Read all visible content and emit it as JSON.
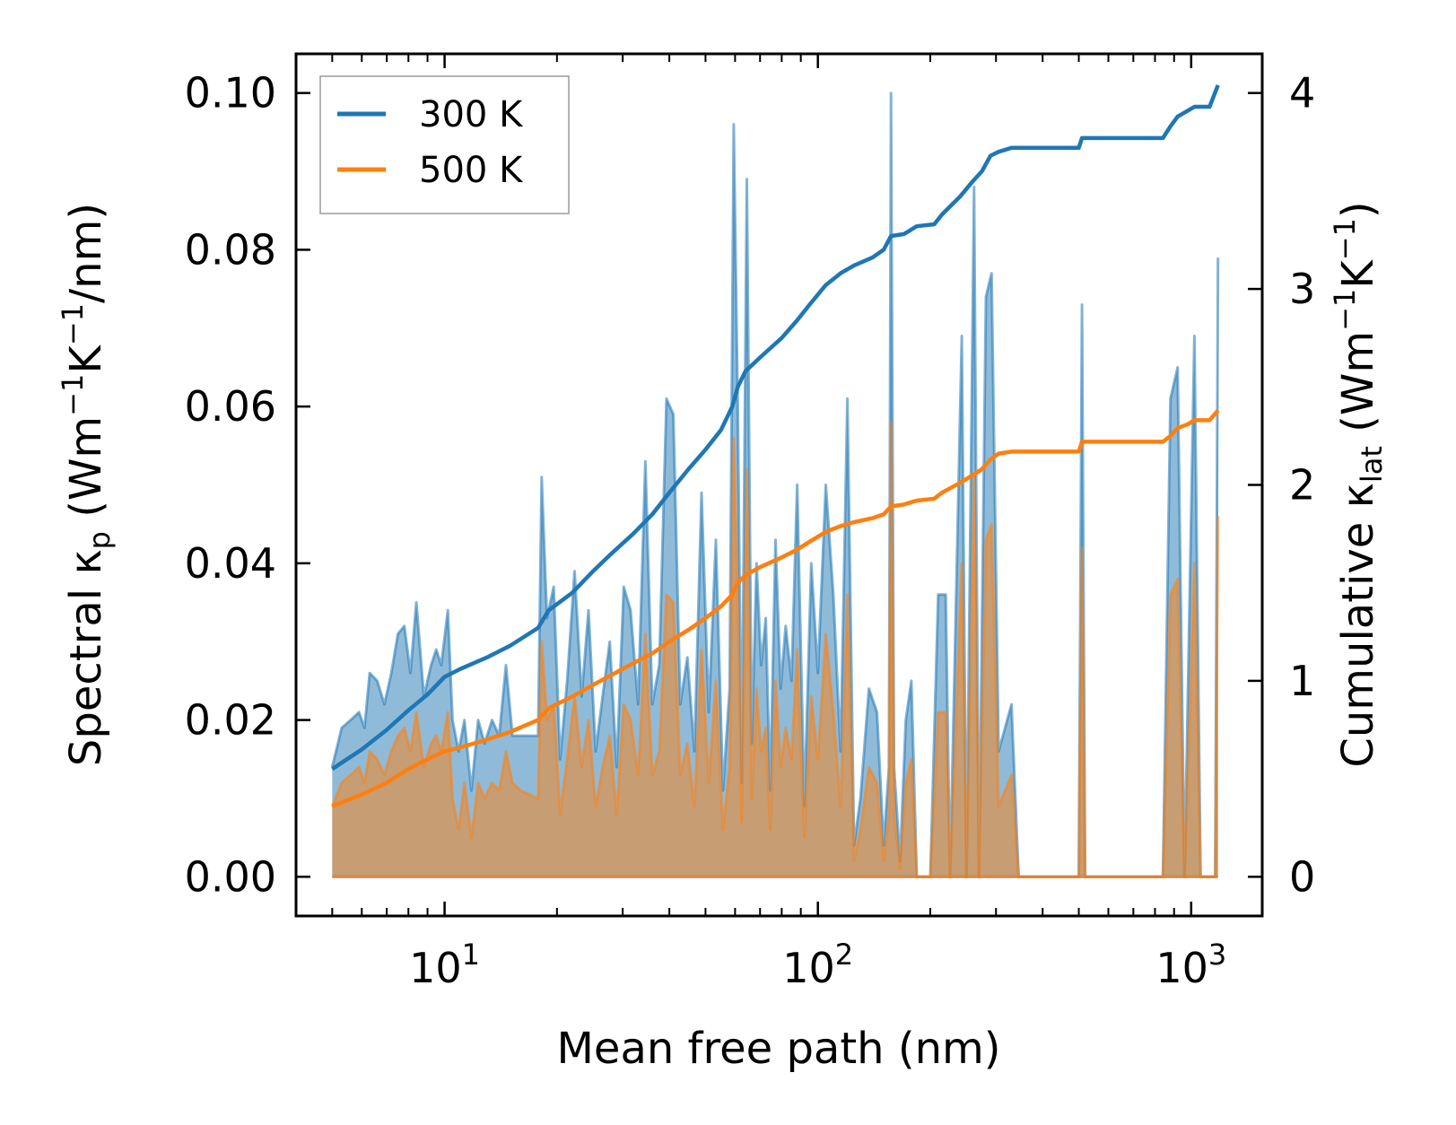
{
  "chart_data": {
    "type": "area",
    "xscale": "log",
    "xlabel": "Mean free path (nm)",
    "ylabel_left": {
      "prefix": "Spectral κ",
      "sub": "p",
      "units": "(Wm",
      "u1": "−1",
      "mid": "K",
      "u2": "−1",
      "tail": "/nm)"
    },
    "ylabel_right": {
      "prefix": "Cumulative κ",
      "sub": "lat",
      "units": "(Wm",
      "u1": "−1",
      "mid": "K",
      "u2": "−1",
      "tail": ")"
    },
    "xlim": [
      4.0,
      1550
    ],
    "ylim_left": [
      -0.005,
      0.105
    ],
    "ylim_right": [
      -0.2,
      4.2
    ],
    "x_ticks": [
      {
        "value": 10,
        "base": "10",
        "exp": "1"
      },
      {
        "value": 100,
        "base": "10",
        "exp": "2"
      },
      {
        "value": 1000,
        "base": "10",
        "exp": "3"
      }
    ],
    "y_ticks_left": [
      {
        "value": 0.0,
        "label": "0.00"
      },
      {
        "value": 0.02,
        "label": "0.02"
      },
      {
        "value": 0.04,
        "label": "0.04"
      },
      {
        "value": 0.06,
        "label": "0.06"
      },
      {
        "value": 0.08,
        "label": "0.08"
      },
      {
        "value": 0.1,
        "label": "0.10"
      }
    ],
    "y_ticks_right": [
      {
        "value": 0,
        "label": "0"
      },
      {
        "value": 1,
        "label": "1"
      },
      {
        "value": 2,
        "label": "2"
      },
      {
        "value": 3,
        "label": "3"
      },
      {
        "value": 4,
        "label": "4"
      }
    ],
    "legend": {
      "position": "upper-left",
      "entries": [
        "300 K",
        "500 K"
      ]
    },
    "colors": {
      "300K": "#1f77b4",
      "500K": "#ff7f0e"
    },
    "spectral_300K": [
      [
        5.0,
        0.014
      ],
      [
        5.3,
        0.019
      ],
      [
        5.6,
        0.02
      ],
      [
        5.9,
        0.021
      ],
      [
        6.1,
        0.019
      ],
      [
        6.3,
        0.026
      ],
      [
        6.6,
        0.025
      ],
      [
        6.9,
        0.022
      ],
      [
        7.2,
        0.026
      ],
      [
        7.5,
        0.031
      ],
      [
        7.8,
        0.032
      ],
      [
        8.1,
        0.026
      ],
      [
        8.4,
        0.035
      ],
      [
        8.8,
        0.023
      ],
      [
        9.2,
        0.027
      ],
      [
        9.5,
        0.029
      ],
      [
        9.8,
        0.027
      ],
      [
        10.2,
        0.034
      ],
      [
        10.5,
        0.02
      ],
      [
        10.9,
        0.016
      ],
      [
        11.3,
        0.02
      ],
      [
        11.8,
        0.011
      ],
      [
        12.3,
        0.02
      ],
      [
        12.8,
        0.017
      ],
      [
        13.4,
        0.02
      ],
      [
        14.0,
        0.018
      ],
      [
        14.6,
        0.027
      ],
      [
        15.2,
        0.018
      ],
      [
        16.0,
        0.018
      ],
      [
        17.8,
        0.018
      ],
      [
        18.2,
        0.051
      ],
      [
        18.8,
        0.033
      ],
      [
        19.6,
        0.037
      ],
      [
        20.4,
        0.015
      ],
      [
        21.3,
        0.025
      ],
      [
        22.3,
        0.039
      ],
      [
        23.3,
        0.023
      ],
      [
        24.3,
        0.034
      ],
      [
        25.4,
        0.016
      ],
      [
        26.5,
        0.023
      ],
      [
        27.7,
        0.03
      ],
      [
        28.9,
        0.014
      ],
      [
        30.2,
        0.037
      ],
      [
        31.5,
        0.034
      ],
      [
        33.0,
        0.022
      ],
      [
        34.5,
        0.053
      ],
      [
        36.0,
        0.022
      ],
      [
        37.6,
        0.027
      ],
      [
        39.3,
        0.061
      ],
      [
        41.0,
        0.059
      ],
      [
        42.8,
        0.022
      ],
      [
        44.7,
        0.028
      ],
      [
        46.7,
        0.016
      ],
      [
        48.8,
        0.049
      ],
      [
        51.0,
        0.021
      ],
      [
        53.3,
        0.043
      ],
      [
        55.7,
        0.011
      ],
      [
        58.0,
        0.024
      ],
      [
        59.5,
        0.096
      ],
      [
        61.0,
        0.06
      ],
      [
        62.5,
        0.012
      ],
      [
        64.5,
        0.089
      ],
      [
        66.5,
        0.017
      ],
      [
        68.5,
        0.04
      ],
      [
        70.5,
        0.027
      ],
      [
        72.5,
        0.033
      ],
      [
        74.5,
        0.011
      ],
      [
        77.0,
        0.043
      ],
      [
        79.5,
        0.024
      ],
      [
        82.0,
        0.032
      ],
      [
        85.0,
        0.025
      ],
      [
        88.0,
        0.05
      ],
      [
        92.0,
        0.009
      ],
      [
        96.0,
        0.04
      ],
      [
        100.0,
        0.026
      ],
      [
        105.0,
        0.05
      ],
      [
        110.0,
        0.036
      ],
      [
        115.0,
        0.016
      ],
      [
        120.0,
        0.061
      ],
      [
        125.0,
        0.004
      ],
      [
        130.0,
        0.01
      ],
      [
        137.0,
        0.024
      ],
      [
        144.0,
        0.021
      ],
      [
        150.0,
        0.004
      ],
      [
        155.0,
        0.014
      ],
      [
        157.0,
        0.1
      ],
      [
        160.0,
        0.014
      ],
      [
        166.0,
        0.002
      ],
      [
        172.0,
        0.02
      ],
      [
        178.0,
        0.025
      ],
      [
        184.0,
        0.0
      ],
      [
        200.0,
        0.0
      ],
      [
        210.0,
        0.036
      ],
      [
        220.0,
        0.036
      ],
      [
        226.0,
        0.0
      ],
      [
        243.0,
        0.069
      ],
      [
        250.0,
        0.0
      ],
      [
        262.0,
        0.088
      ],
      [
        270.0,
        0.0
      ],
      [
        282.0,
        0.074
      ],
      [
        292.0,
        0.077
      ],
      [
        305.0,
        0.016
      ],
      [
        330.0,
        0.022
      ],
      [
        345.0,
        0.0
      ],
      [
        500.0,
        0.0
      ],
      [
        510.0,
        0.073
      ],
      [
        520.0,
        0.0
      ],
      [
        840.0,
        0.0
      ],
      [
        880.0,
        0.061
      ],
      [
        920.0,
        0.065
      ],
      [
        960.0,
        0.0
      ],
      [
        1020.0,
        0.069
      ],
      [
        1060.0,
        0.0
      ],
      [
        1160.0,
        0.0
      ],
      [
        1180.0,
        0.079
      ]
    ],
    "spectral_500K": [
      [
        5.0,
        0.009
      ],
      [
        5.3,
        0.012
      ],
      [
        5.6,
        0.013
      ],
      [
        5.9,
        0.014
      ],
      [
        6.1,
        0.012
      ],
      [
        6.3,
        0.016
      ],
      [
        6.6,
        0.015
      ],
      [
        6.9,
        0.013
      ],
      [
        7.2,
        0.016
      ],
      [
        7.5,
        0.018
      ],
      [
        7.8,
        0.019
      ],
      [
        8.1,
        0.016
      ],
      [
        8.4,
        0.021
      ],
      [
        8.8,
        0.014
      ],
      [
        9.2,
        0.017
      ],
      [
        9.5,
        0.018
      ],
      [
        9.8,
        0.016
      ],
      [
        10.2,
        0.021
      ],
      [
        10.5,
        0.01
      ],
      [
        10.9,
        0.006
      ],
      [
        11.3,
        0.012
      ],
      [
        11.8,
        0.005
      ],
      [
        12.3,
        0.012
      ],
      [
        12.8,
        0.01
      ],
      [
        13.4,
        0.012
      ],
      [
        14.0,
        0.011
      ],
      [
        14.6,
        0.016
      ],
      [
        15.2,
        0.012
      ],
      [
        16.0,
        0.011
      ],
      [
        17.8,
        0.01
      ],
      [
        18.2,
        0.03
      ],
      [
        18.8,
        0.02
      ],
      [
        19.6,
        0.022
      ],
      [
        20.4,
        0.008
      ],
      [
        21.3,
        0.015
      ],
      [
        22.3,
        0.023
      ],
      [
        23.3,
        0.014
      ],
      [
        24.3,
        0.02
      ],
      [
        25.4,
        0.009
      ],
      [
        26.5,
        0.014
      ],
      [
        27.7,
        0.018
      ],
      [
        28.9,
        0.008
      ],
      [
        30.2,
        0.022
      ],
      [
        31.5,
        0.02
      ],
      [
        33.0,
        0.013
      ],
      [
        34.5,
        0.031
      ],
      [
        36.0,
        0.013
      ],
      [
        37.6,
        0.016
      ],
      [
        39.3,
        0.036
      ],
      [
        41.0,
        0.035
      ],
      [
        42.8,
        0.013
      ],
      [
        44.7,
        0.017
      ],
      [
        46.7,
        0.009
      ],
      [
        48.8,
        0.029
      ],
      [
        51.0,
        0.012
      ],
      [
        53.3,
        0.025
      ],
      [
        55.7,
        0.006
      ],
      [
        58.0,
        0.014
      ],
      [
        59.5,
        0.056
      ],
      [
        61.0,
        0.035
      ],
      [
        62.5,
        0.007
      ],
      [
        64.5,
        0.052
      ],
      [
        66.5,
        0.01
      ],
      [
        68.5,
        0.024
      ],
      [
        70.5,
        0.016
      ],
      [
        72.5,
        0.019
      ],
      [
        74.5,
        0.006
      ],
      [
        77.0,
        0.025
      ],
      [
        79.5,
        0.014
      ],
      [
        82.0,
        0.019
      ],
      [
        85.0,
        0.015
      ],
      [
        88.0,
        0.029
      ],
      [
        92.0,
        0.005
      ],
      [
        96.0,
        0.023
      ],
      [
        100.0,
        0.015
      ],
      [
        105.0,
        0.031
      ],
      [
        110.0,
        0.021
      ],
      [
        115.0,
        0.009
      ],
      [
        120.0,
        0.036
      ],
      [
        125.0,
        0.002
      ],
      [
        130.0,
        0.006
      ],
      [
        137.0,
        0.014
      ],
      [
        144.0,
        0.012
      ],
      [
        150.0,
        0.002
      ],
      [
        155.0,
        0.008
      ],
      [
        157.0,
        0.058
      ],
      [
        160.0,
        0.008
      ],
      [
        166.0,
        0.001
      ],
      [
        172.0,
        0.012
      ],
      [
        178.0,
        0.015
      ],
      [
        184.0,
        0.0
      ],
      [
        200.0,
        0.0
      ],
      [
        210.0,
        0.021
      ],
      [
        220.0,
        0.021
      ],
      [
        226.0,
        0.0
      ],
      [
        243.0,
        0.04
      ],
      [
        250.0,
        0.0
      ],
      [
        262.0,
        0.051
      ],
      [
        270.0,
        0.0
      ],
      [
        282.0,
        0.043
      ],
      [
        292.0,
        0.045
      ],
      [
        305.0,
        0.009
      ],
      [
        330.0,
        0.013
      ],
      [
        345.0,
        0.0
      ],
      [
        500.0,
        0.0
      ],
      [
        510.0,
        0.042
      ],
      [
        520.0,
        0.0
      ],
      [
        840.0,
        0.0
      ],
      [
        880.0,
        0.036
      ],
      [
        920.0,
        0.038
      ],
      [
        960.0,
        0.0
      ],
      [
        1020.0,
        0.04
      ],
      [
        1060.0,
        0.0
      ],
      [
        1160.0,
        0.0
      ],
      [
        1180.0,
        0.046
      ]
    ],
    "cumulative_300K": [
      [
        5.0,
        0.55
      ],
      [
        6.0,
        0.65
      ],
      [
        7.0,
        0.75
      ],
      [
        8.0,
        0.85
      ],
      [
        9.0,
        0.93
      ],
      [
        10.0,
        1.02
      ],
      [
        11.0,
        1.06
      ],
      [
        13.0,
        1.12
      ],
      [
        15.0,
        1.18
      ],
      [
        17.8,
        1.27
      ],
      [
        19.0,
        1.36
      ],
      [
        22.0,
        1.45
      ],
      [
        25.0,
        1.56
      ],
      [
        28.0,
        1.65
      ],
      [
        32.0,
        1.75
      ],
      [
        36.0,
        1.85
      ],
      [
        40.0,
        1.96
      ],
      [
        45.0,
        2.08
      ],
      [
        50.0,
        2.18
      ],
      [
        55.0,
        2.28
      ],
      [
        59.0,
        2.4
      ],
      [
        61.0,
        2.5
      ],
      [
        64.0,
        2.58
      ],
      [
        70.0,
        2.65
      ],
      [
        80.0,
        2.75
      ],
      [
        88.0,
        2.84
      ],
      [
        95.0,
        2.92
      ],
      [
        105.0,
        3.02
      ],
      [
        115.0,
        3.08
      ],
      [
        125.0,
        3.12
      ],
      [
        140.0,
        3.16
      ],
      [
        150.0,
        3.2
      ],
      [
        157.0,
        3.27
      ],
      [
        170.0,
        3.28
      ],
      [
        184.0,
        3.32
      ],
      [
        205.0,
        3.33
      ],
      [
        215.0,
        3.38
      ],
      [
        240.0,
        3.47
      ],
      [
        260.0,
        3.55
      ],
      [
        275.0,
        3.6
      ],
      [
        290.0,
        3.68
      ],
      [
        305.0,
        3.7
      ],
      [
        330.0,
        3.72
      ],
      [
        345.0,
        3.72
      ],
      [
        500.0,
        3.72
      ],
      [
        510.0,
        3.77
      ],
      [
        840.0,
        3.77
      ],
      [
        880.0,
        3.83
      ],
      [
        920.0,
        3.88
      ],
      [
        980.0,
        3.91
      ],
      [
        1020.0,
        3.93
      ],
      [
        1120.0,
        3.93
      ],
      [
        1180.0,
        4.04
      ]
    ],
    "cumulative_500K": [
      [
        5.0,
        0.36
      ],
      [
        6.0,
        0.42
      ],
      [
        7.0,
        0.48
      ],
      [
        8.0,
        0.55
      ],
      [
        9.0,
        0.6
      ],
      [
        10.0,
        0.64
      ],
      [
        11.0,
        0.66
      ],
      [
        13.0,
        0.7
      ],
      [
        15.0,
        0.74
      ],
      [
        17.8,
        0.8
      ],
      [
        19.0,
        0.86
      ],
      [
        22.0,
        0.92
      ],
      [
        25.0,
        0.98
      ],
      [
        28.0,
        1.03
      ],
      [
        32.0,
        1.09
      ],
      [
        36.0,
        1.14
      ],
      [
        40.0,
        1.2
      ],
      [
        45.0,
        1.26
      ],
      [
        50.0,
        1.32
      ],
      [
        55.0,
        1.38
      ],
      [
        59.0,
        1.44
      ],
      [
        61.0,
        1.5
      ],
      [
        64.0,
        1.54
      ],
      [
        70.0,
        1.58
      ],
      [
        80.0,
        1.63
      ],
      [
        88.0,
        1.67
      ],
      [
        95.0,
        1.71
      ],
      [
        105.0,
        1.76
      ],
      [
        115.0,
        1.79
      ],
      [
        125.0,
        1.81
      ],
      [
        140.0,
        1.83
      ],
      [
        150.0,
        1.85
      ],
      [
        157.0,
        1.89
      ],
      [
        170.0,
        1.9
      ],
      [
        184.0,
        1.92
      ],
      [
        205.0,
        1.93
      ],
      [
        215.0,
        1.96
      ],
      [
        240.0,
        2.01
      ],
      [
        260.0,
        2.05
      ],
      [
        275.0,
        2.08
      ],
      [
        290.0,
        2.13
      ],
      [
        305.0,
        2.16
      ],
      [
        330.0,
        2.17
      ],
      [
        345.0,
        2.17
      ],
      [
        500.0,
        2.17
      ],
      [
        510.0,
        2.22
      ],
      [
        840.0,
        2.22
      ],
      [
        880.0,
        2.25
      ],
      [
        920.0,
        2.29
      ],
      [
        980.0,
        2.31
      ],
      [
        1020.0,
        2.33
      ],
      [
        1120.0,
        2.33
      ],
      [
        1180.0,
        2.38
      ]
    ]
  }
}
